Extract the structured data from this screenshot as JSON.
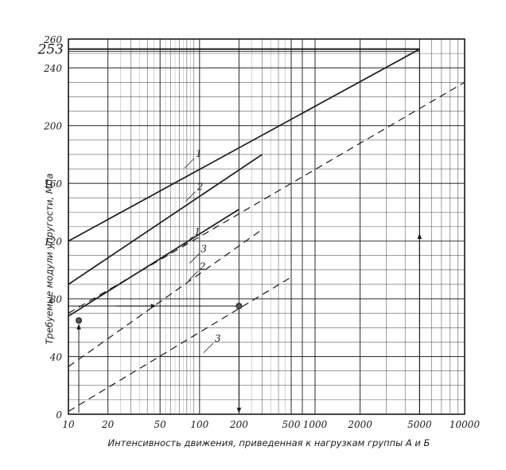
{
  "chart_data": {
    "type": "line",
    "xlabel": "Интенсивность движения, приведенная к нагрузкам группы А и Б",
    "ylabel": "Требуемые модули упругости, МПа",
    "x_scale": "log",
    "x_segments": [
      {
        "from": 10,
        "to": 500,
        "ticks": [
          10,
          20,
          50,
          100,
          200,
          500
        ],
        "labels": [
          "10",
          "20",
          "50",
          "100",
          "200",
          "500"
        ]
      },
      {
        "from": 1000,
        "to": 10000,
        "ticks": [
          1000,
          2000,
          5000,
          10000
        ],
        "labels": [
          "1000",
          "2000",
          "5000",
          "10000"
        ]
      }
    ],
    "ylim": [
      0,
      260
    ],
    "yticks": [
      0,
      40,
      80,
      120,
      160,
      200,
      240,
      260
    ],
    "ytick_labels": [
      "0",
      "40",
      "80",
      "120",
      "160",
      "200",
      "240",
      "260"
    ],
    "grid": true,
    "highlight_y": {
      "value": 253,
      "label": "253"
    },
    "series": [
      {
        "name": "1",
        "style": "solid",
        "segment": 1,
        "x": [
          10,
          5000
        ],
        "y": [
          120,
          253
        ]
      },
      {
        "name": "2",
        "style": "solid",
        "segment": 0,
        "x": [
          10,
          300
        ],
        "y": [
          90,
          180
        ]
      },
      {
        "name": "3",
        "style": "solid",
        "segment": 0,
        "x": [
          10,
          200
        ],
        "y": [
          68,
          142
        ]
      },
      {
        "name": "1",
        "style": "dashed",
        "segment": 1,
        "x": [
          10,
          10000
        ],
        "y": [
          70,
          230
        ]
      },
      {
        "name": "2",
        "style": "dashed",
        "segment": 0,
        "x": [
          10,
          300
        ],
        "y": [
          33,
          128
        ]
      },
      {
        "name": "3",
        "style": "dashed",
        "segment": 0,
        "x": [
          10,
          500
        ],
        "y": [
          2,
          95
        ]
      }
    ],
    "annotations": [
      {
        "text": "1",
        "x": 86,
        "y": 175
      },
      {
        "text": "2",
        "x": 88,
        "y": 152
      },
      {
        "text": "1",
        "x": 84,
        "y": 121
      },
      {
        "text": "3",
        "x": 94,
        "y": 109
      },
      {
        "text": "2",
        "x": 92,
        "y": 97
      },
      {
        "text": "3",
        "x": 120,
        "y": 47
      }
    ],
    "example_points": [
      {
        "x": 12,
        "y": 65
      },
      {
        "x": 200,
        "y": 75
      }
    ]
  }
}
